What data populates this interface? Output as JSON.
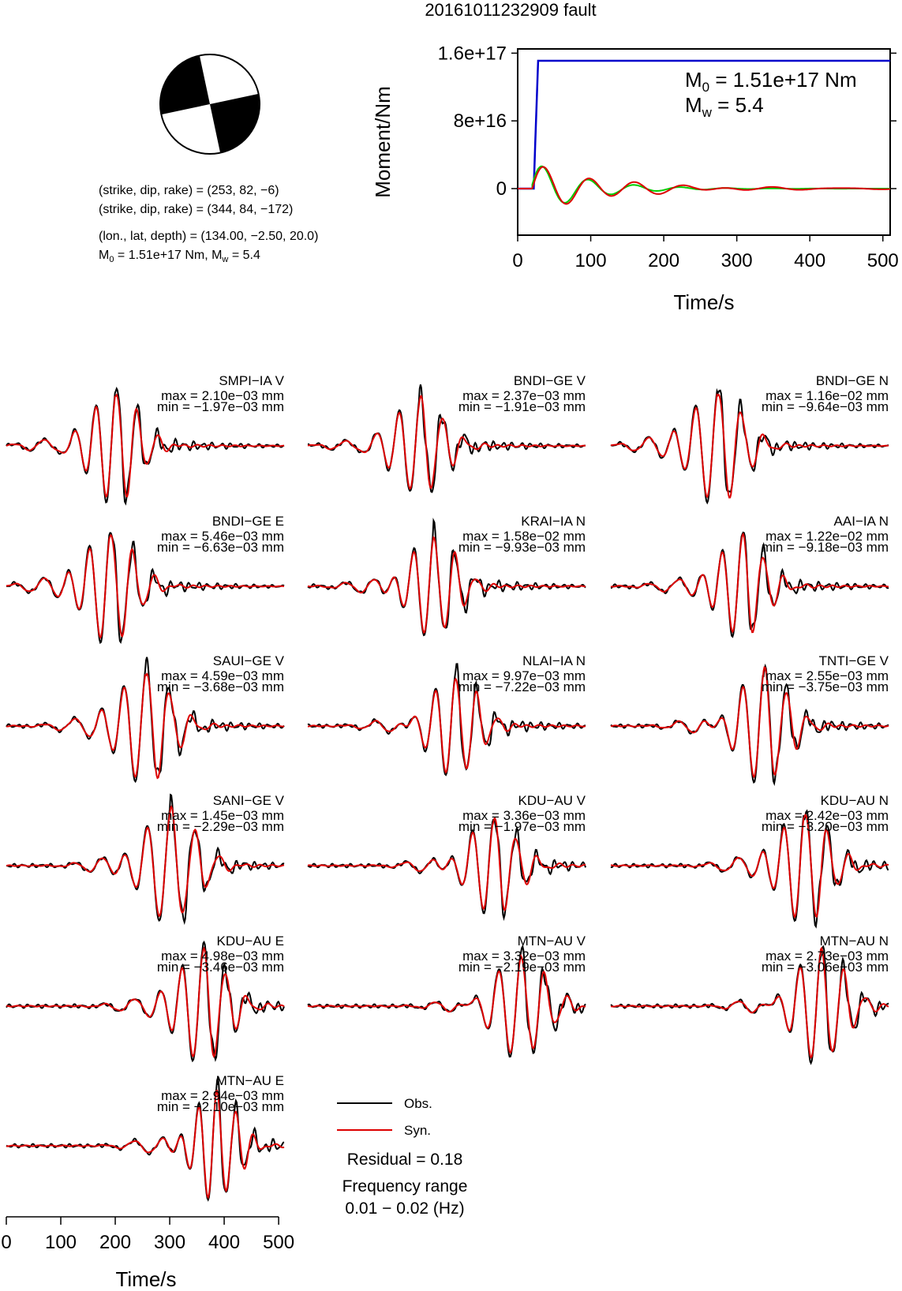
{
  "title": "20161011232909 fault",
  "mechanism": {
    "planes": [
      "(strike, dip, rake) = (253, 82, −6)",
      "(strike, dip, rake) = (344, 84, −172)"
    ],
    "location": "(lon., lat, depth) = (134.00, −2.50, 20.0)",
    "moment_line": {
      "m0_prefix": "M",
      "m0_sub": "0",
      "m0_rest": " = 1.51e+17 Nm, M",
      "mw_sub": "w",
      "mw_rest": " = 5.4"
    }
  },
  "moment_plot": {
    "ylabel": "Moment/Nm",
    "xlabel": "Time/s",
    "xticks": [
      "0",
      "100",
      "200",
      "300",
      "400",
      "500"
    ],
    "yticks": [
      "1.6e+17",
      "8e+16",
      "0"
    ],
    "m0_label": {
      "prefix": "M",
      "sub": "0",
      "rest": " = 1.51e+17 Nm"
    },
    "mw_label": {
      "prefix": "M",
      "sub": "w",
      "rest": " = 5.4"
    }
  },
  "chart_data": {
    "type": "line",
    "moment": {
      "x_range": [
        0,
        510
      ],
      "y_range": [
        -5.5e+16,
        1.65e+17
      ],
      "cumulative": {
        "color": "#0000cc",
        "onset_s": 22,
        "rise_end_s": 28,
        "value": 1.51e+17
      },
      "rate_green": {
        "color": "#00cc00",
        "amp": 3.2e+16
      },
      "rate_red": {
        "color": "#dd0000",
        "amp": 3e+16
      }
    },
    "waveform_axis": {
      "xlabel": "Time/s",
      "ticks": [
        "0",
        "100",
        "200",
        "300",
        "400",
        "500"
      ],
      "x_range": [
        0,
        510
      ]
    },
    "stations": [
      {
        "name": "SMPI−IA V",
        "max": "max = 2.10e−03 mm",
        "min": "min = −1.97e−03 mm",
        "center_s": 200,
        "period_s": 38,
        "scale": 1.0
      },
      {
        "name": "BNDI−GE V",
        "max": "max = 2.37e−03 mm",
        "min": "min = −1.91e−03 mm",
        "center_s": 205,
        "period_s": 40,
        "scale": 0.85
      },
      {
        "name": "BNDI−GE N",
        "max": "max = 1.16e−02 mm",
        "min": "min = −9.64e−03 mm",
        "center_s": 195,
        "period_s": 42,
        "scale": 1.0
      },
      {
        "name": "BNDI−GE E",
        "max": "max = 5.46e−03 mm",
        "min": "min = −6.63e−03 mm",
        "center_s": 190,
        "period_s": 40,
        "scale": 1.0
      },
      {
        "name": "KRAI−IA N",
        "max": "max = 1.58e−02 mm",
        "min": "min = −9.93e−03 mm",
        "center_s": 230,
        "period_s": 38,
        "scale": 0.9
      },
      {
        "name": "AAI−IA N",
        "max": "max = 1.22e−02 mm",
        "min": "min = −9.18e−03 mm",
        "center_s": 240,
        "period_s": 38,
        "scale": 0.9
      },
      {
        "name": "SAUI−GE V",
        "max": "max = 4.59e−03 mm",
        "min": "min = −3.68e−03 mm",
        "center_s": 255,
        "period_s": 42,
        "scale": 1.0
      },
      {
        "name": "NLAI−IA N",
        "max": "max = 9.97e−03 mm",
        "min": "min = −7.22e−03 mm",
        "center_s": 270,
        "period_s": 38,
        "scale": 0.9
      },
      {
        "name": "TNTI−GE V",
        "max": "max = 2.55e−03 mm",
        "min": "min = −3.75e−03 mm",
        "center_s": 280,
        "period_s": 40,
        "scale": 1.0
      },
      {
        "name": "SANI−GE V",
        "max": "max = 1.45e−03 mm",
        "min": "min = −2.29e−03 mm",
        "center_s": 300,
        "period_s": 44,
        "scale": 1.0
      },
      {
        "name": "KDU−AU V",
        "max": "max = 3.36e−03 mm",
        "min": "min = −1.97e−03 mm",
        "center_s": 340,
        "period_s": 40,
        "scale": 0.85
      },
      {
        "name": "KDU−AU N",
        "max": "max = 2.42e−03 mm",
        "min": "min = −3.20e−03 mm",
        "center_s": 355,
        "period_s": 40,
        "scale": 1.0
      },
      {
        "name": "KDU−AU E",
        "max": "max = 4.98e−03 mm",
        "min": "min = −3.46e−03 mm",
        "center_s": 360,
        "period_s": 40,
        "scale": 1.0
      },
      {
        "name": "MTN−AU V",
        "max": "max = 3.32e−03 mm",
        "min": "min = −2.19e−03 mm",
        "center_s": 390,
        "period_s": 42,
        "scale": 0.9
      },
      {
        "name": "MTN−AU N",
        "max": "max = 2.73e−03 mm",
        "min": "min = −3.06e−03 mm",
        "center_s": 385,
        "period_s": 40,
        "scale": 1.0
      },
      {
        "name": "MTN−AU E",
        "max": "max = 2.94e−03 mm",
        "min": "min = −2.10e−03 mm",
        "center_s": 385,
        "period_s": 34,
        "scale": 1.0
      }
    ],
    "colors": {
      "observed": "#000000",
      "synthetic": "#dd0000"
    }
  },
  "legend": {
    "obs": "Obs.",
    "syn": "Syn."
  },
  "residual": "Residual = 0.18",
  "frequency_label": "Frequency range",
  "frequency_value": "0.01 − 0.02 (Hz)"
}
